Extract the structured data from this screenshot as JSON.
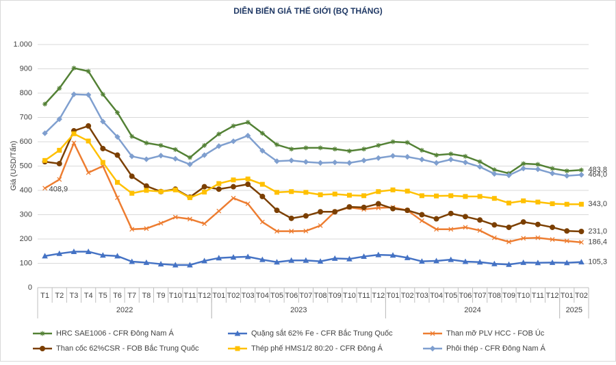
{
  "chart_data": {
    "type": "line",
    "title": "DIỄN BIẾN GIÁ THẾ GIỚI (BQ THÁNG)",
    "y_label": "Giá (USD/Tấn)",
    "categories": [
      "T1",
      "T2",
      "T3",
      "T4",
      "T5",
      "T6",
      "T7",
      "T8",
      "T9",
      "T10",
      "T11",
      "T12",
      "T01",
      "T02",
      "T03",
      "T04",
      "T05",
      "T06",
      "T07",
      "T08",
      "T09",
      "T10",
      "T11",
      "T12",
      "T01",
      "T02",
      "T03",
      "T04",
      "T05",
      "T06",
      "T07",
      "T08",
      "T09",
      "T10",
      "T11",
      "T12",
      "T01",
      "T02"
    ],
    "groups": [
      {
        "label": "2022",
        "count": 12
      },
      {
        "label": "2023",
        "count": 12
      },
      {
        "label": "2024",
        "count": 12
      },
      {
        "label": "2025",
        "count": 2
      }
    ],
    "ylim": [
      0,
      1000
    ],
    "yticks": [
      0,
      100,
      200,
      300,
      400,
      500,
      600,
      700,
      800,
      900,
      {
        "value": 1000,
        "label": "1.000"
      }
    ],
    "grid": true,
    "series": [
      {
        "name": "HRC SAE1006 - CFR Đông Nam Á",
        "color": "#538135",
        "marker": "star",
        "values": [
          755,
          820,
          903,
          890,
          795,
          720,
          622,
          595,
          585,
          568,
          535,
          585,
          632,
          665,
          680,
          635,
          588,
          570,
          575,
          575,
          570,
          562,
          570,
          585,
          600,
          597,
          565,
          545,
          550,
          540,
          518,
          485,
          470,
          510,
          507,
          490,
          480,
          483.8
        ],
        "value_labels": [
          null,
          null,
          null,
          null,
          null,
          null,
          null,
          null,
          null,
          null,
          null,
          null,
          null,
          null,
          null,
          null,
          null,
          null,
          null,
          null,
          null,
          null,
          null,
          null,
          null,
          null,
          null,
          null,
          null,
          null,
          null,
          null,
          null,
          null,
          null,
          null,
          null,
          "483,8"
        ]
      },
      {
        "name": "Quặng sắt 62% Fe - CFR Bắc Trung Quốc",
        "color": "#4472c4",
        "marker": "triangle",
        "values": [
          130,
          140,
          148,
          148,
          133,
          130,
          107,
          103,
          97,
          93,
          93,
          110,
          122,
          125,
          127,
          115,
          105,
          112,
          112,
          108,
          120,
          118,
          128,
          135,
          133,
          123,
          108,
          110,
          115,
          107,
          105,
          98,
          95,
          103,
          102,
          103,
          102,
          105.3
        ],
        "value_labels": [
          null,
          null,
          null,
          null,
          null,
          null,
          null,
          null,
          null,
          null,
          null,
          null,
          null,
          null,
          null,
          null,
          null,
          null,
          null,
          null,
          null,
          null,
          null,
          null,
          null,
          null,
          null,
          null,
          null,
          null,
          null,
          null,
          null,
          null,
          null,
          null,
          null,
          "105,3"
        ]
      },
      {
        "name": "Than mỡ PLV HCC - FOB Úc",
        "color": "#ed7d31",
        "marker": "x",
        "values": [
          408.9,
          445,
          595,
          473,
          500,
          370,
          240,
          243,
          265,
          290,
          282,
          263,
          315,
          368,
          345,
          270,
          232,
          232,
          233,
          255,
          312,
          330,
          322,
          328,
          330,
          318,
          275,
          240,
          240,
          248,
          235,
          205,
          188,
          203,
          205,
          198,
          192,
          186.4
        ],
        "value_labels": [
          "408,9",
          null,
          null,
          null,
          null,
          null,
          null,
          null,
          null,
          null,
          null,
          null,
          null,
          null,
          null,
          null,
          null,
          null,
          null,
          null,
          null,
          null,
          null,
          null,
          null,
          null,
          null,
          null,
          null,
          null,
          null,
          null,
          null,
          null,
          null,
          null,
          null,
          "186,4"
        ]
      },
      {
        "name": "Than cốc 62%CSR - FOB Bắc Trung Quốc",
        "color": "#7b3f00",
        "marker": "circle",
        "values": [
          518,
          510,
          645,
          665,
          572,
          545,
          458,
          418,
          395,
          405,
          372,
          415,
          405,
          415,
          425,
          375,
          318,
          285,
          295,
          312,
          312,
          332,
          330,
          345,
          325,
          318,
          300,
          283,
          305,
          292,
          278,
          258,
          248,
          270,
          260,
          248,
          233,
          231
        ],
        "value_labels": [
          null,
          null,
          null,
          null,
          null,
          null,
          null,
          null,
          null,
          null,
          null,
          null,
          null,
          null,
          null,
          null,
          null,
          null,
          null,
          null,
          null,
          null,
          null,
          null,
          null,
          null,
          null,
          null,
          null,
          null,
          null,
          null,
          null,
          null,
          null,
          null,
          null,
          "231,0"
        ]
      },
      {
        "name": "Thép phế HMS1/2 80:20 - CFR Đông Á",
        "color": "#ffc000",
        "marker": "square",
        "values": [
          523,
          565,
          633,
          603,
          515,
          433,
          388,
          400,
          395,
          402,
          370,
          393,
          428,
          443,
          447,
          425,
          392,
          395,
          392,
          382,
          385,
          380,
          378,
          395,
          402,
          397,
          378,
          377,
          378,
          375,
          375,
          367,
          348,
          357,
          352,
          345,
          343,
          343
        ],
        "value_labels": [
          null,
          null,
          null,
          null,
          null,
          null,
          null,
          null,
          null,
          null,
          null,
          null,
          null,
          null,
          null,
          null,
          null,
          null,
          null,
          null,
          null,
          null,
          null,
          null,
          null,
          null,
          null,
          null,
          null,
          null,
          null,
          null,
          null,
          null,
          null,
          null,
          null,
          "343,0"
        ]
      },
      {
        "name": "Phôi thép - CFR Đông Nam Á",
        "color": "#7f9fcf",
        "marker": "diamond",
        "values": [
          635,
          693,
          795,
          793,
          683,
          620,
          540,
          528,
          543,
          530,
          507,
          545,
          582,
          602,
          625,
          563,
          520,
          523,
          517,
          513,
          515,
          513,
          523,
          533,
          542,
          538,
          527,
          513,
          527,
          515,
          497,
          468,
          462,
          490,
          487,
          470,
          460,
          464
        ],
        "value_labels": [
          null,
          null,
          null,
          null,
          null,
          null,
          null,
          null,
          null,
          null,
          null,
          null,
          null,
          null,
          null,
          null,
          null,
          null,
          null,
          null,
          null,
          null,
          null,
          null,
          null,
          null,
          null,
          null,
          null,
          null,
          null,
          null,
          null,
          null,
          null,
          null,
          null,
          "464,0"
        ]
      }
    ]
  }
}
